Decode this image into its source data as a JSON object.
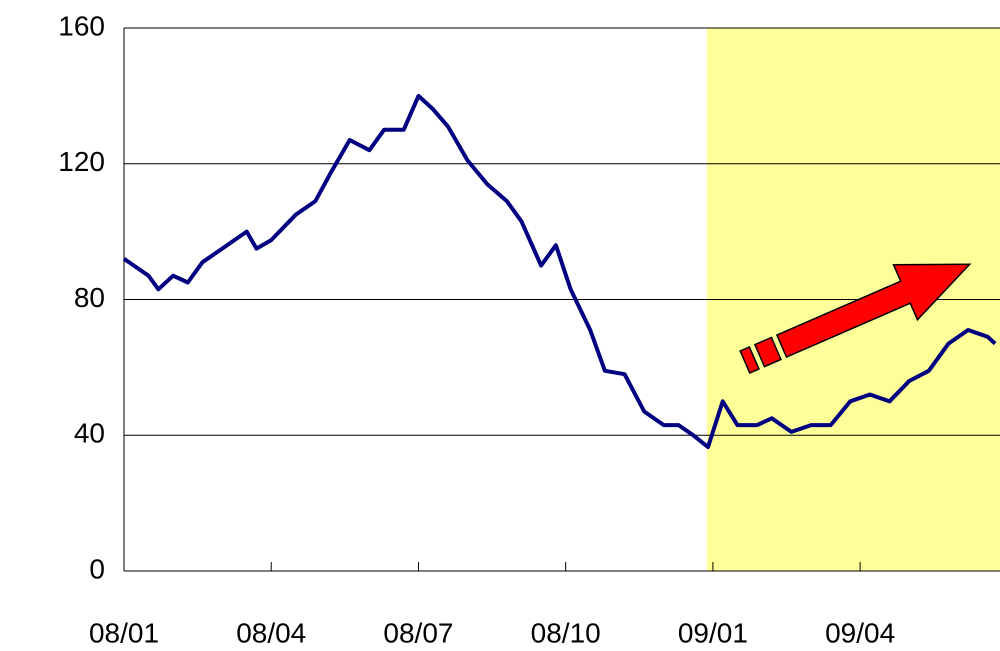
{
  "chart_data": {
    "type": "line",
    "x": [
      0,
      0.5,
      0.7,
      1.0,
      1.3,
      1.6,
      2.0,
      2.5,
      2.7,
      3.0,
      3.5,
      3.9,
      4.2,
      4.6,
      5.0,
      5.3,
      5.7,
      6.0,
      6.3,
      6.6,
      7.0,
      7.4,
      7.8,
      8.1,
      8.5,
      8.8,
      9.1,
      9.5,
      9.8,
      10.2,
      10.6,
      11.0,
      11.3,
      11.6,
      11.9,
      12.2,
      12.5,
      12.9,
      13.2,
      13.6,
      14.0,
      14.4,
      14.8,
      15.2,
      15.6,
      16.0,
      16.4,
      16.8,
      17.2,
      17.6,
      17.75
    ],
    "values": [
      92,
      87,
      83,
      87,
      85,
      91,
      95,
      100,
      95,
      97.5,
      105,
      109,
      117,
      127,
      124,
      130,
      130,
      140,
      136,
      131,
      121,
      114,
      109,
      103,
      90,
      96,
      83,
      71,
      59,
      58,
      47,
      43,
      43,
      40,
      36.5,
      50,
      43,
      43,
      45,
      41,
      43,
      43,
      50,
      52,
      50,
      56,
      59,
      67,
      71,
      69,
      67
    ],
    "color": "#000080",
    "xlim": [
      0,
      17.85
    ],
    "xticks": [
      {
        "value": 0,
        "label": "08/01"
      },
      {
        "value": 3,
        "label": "08/04"
      },
      {
        "value": 6,
        "label": "08/07"
      },
      {
        "value": 9,
        "label": "08/10"
      },
      {
        "value": 12,
        "label": "09/01"
      },
      {
        "value": 15,
        "label": "09/04"
      }
    ],
    "ylim": [
      0,
      160
    ],
    "yticks": [
      0,
      40,
      80,
      120,
      160
    ],
    "grid": true,
    "shade_x": [
      11.88,
      17.85
    ],
    "shade_color": "#ffff99"
  }
}
